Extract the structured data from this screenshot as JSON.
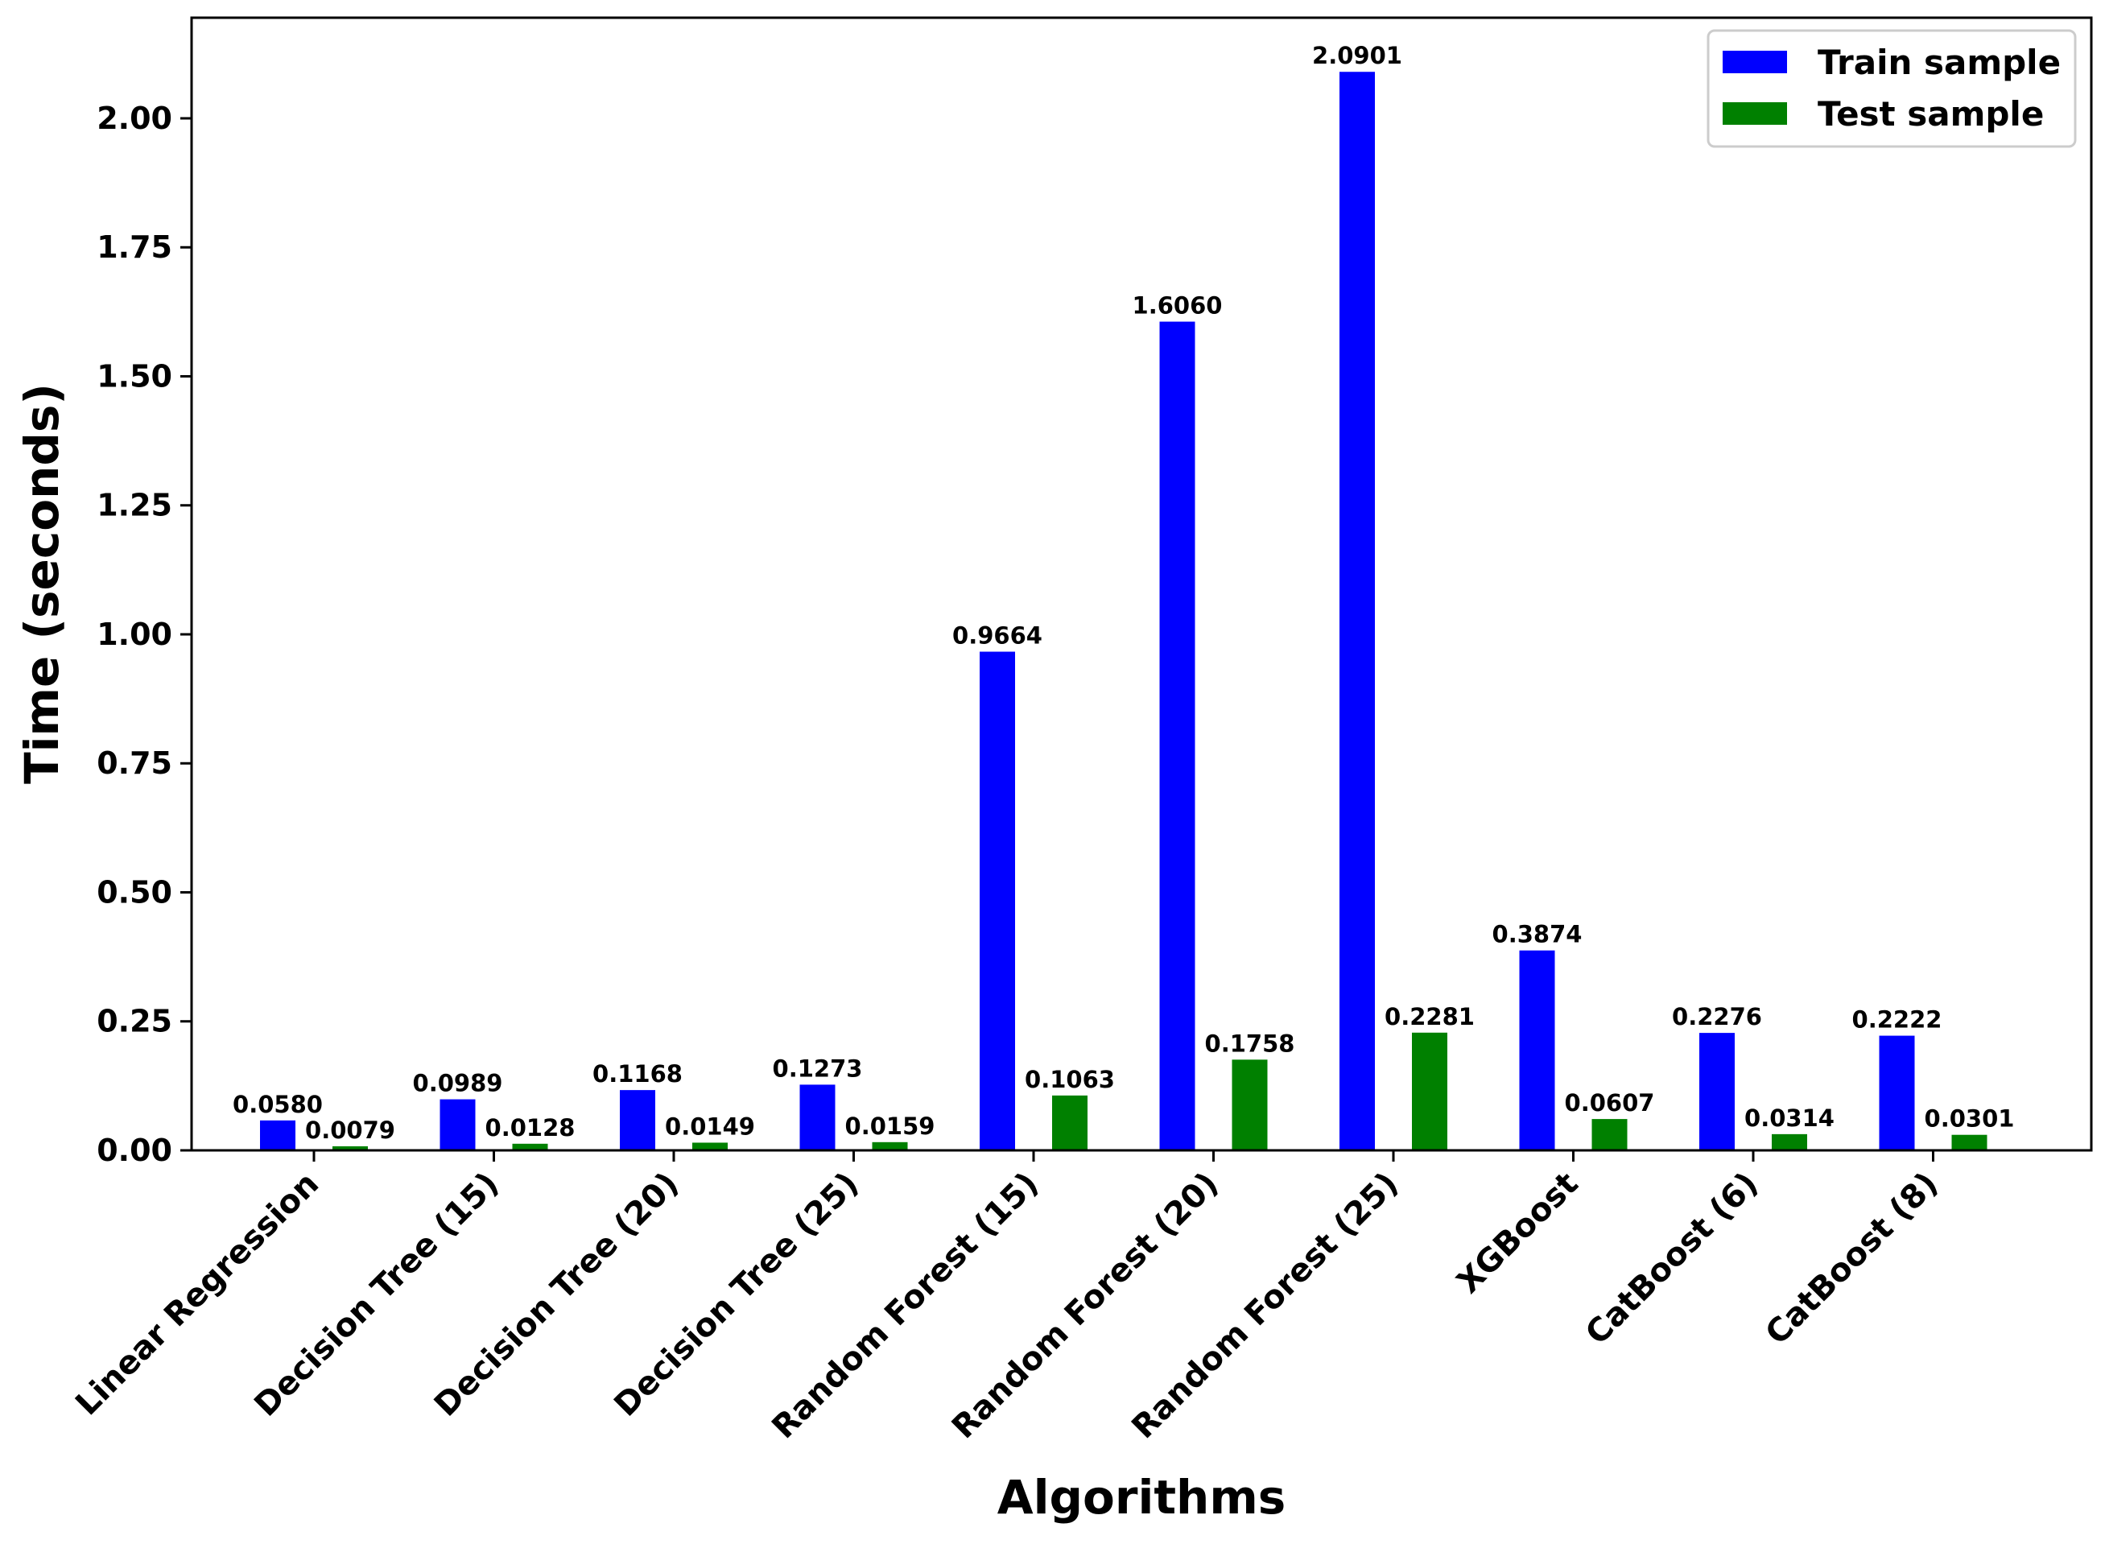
{
  "chart_data": {
    "type": "bar",
    "title": "",
    "xlabel": "Algorithms",
    "ylabel": "Time (seconds)",
    "ylim": [
      0,
      2.195
    ],
    "yticks": [
      0.0,
      0.25,
      0.5,
      0.75,
      1.0,
      1.25,
      1.5,
      1.75,
      2.0
    ],
    "ytick_labels": [
      "0.00",
      "0.25",
      "0.50",
      "0.75",
      "1.00",
      "1.25",
      "1.50",
      "1.75",
      "2.00"
    ],
    "categories": [
      "Linear Regression",
      "Decision Tree (15)",
      "Decision Tree (20)",
      "Decision Tree (25)",
      "Random Forest (15)",
      "Random Forest (20)",
      "Random Forest (25)",
      "XGBoost",
      "CatBoost (6)",
      "CatBoost (8)"
    ],
    "series": [
      {
        "name": "Train sample",
        "color": "#0000ff",
        "values": [
          0.058,
          0.0989,
          0.1168,
          0.1273,
          0.9664,
          1.606,
          2.0901,
          0.3874,
          0.2276,
          0.2222
        ],
        "labels": [
          "0.0580",
          "0.0989",
          "0.1168",
          "0.1273",
          "0.9664",
          "1.6060",
          "2.0901",
          "0.3874",
          "0.2276",
          "0.2222"
        ]
      },
      {
        "name": "Test sample",
        "color": "#008000",
        "values": [
          0.0079,
          0.0128,
          0.0149,
          0.0159,
          0.1063,
          0.1758,
          0.2281,
          0.0607,
          0.0314,
          0.0301
        ],
        "labels": [
          "0.0079",
          "0.0128",
          "0.0149",
          "0.0159",
          "0.1063",
          "0.1758",
          "0.2281",
          "0.0607",
          "0.0314",
          "0.0301"
        ]
      }
    ],
    "legend": "top-right",
    "grid": false
  }
}
